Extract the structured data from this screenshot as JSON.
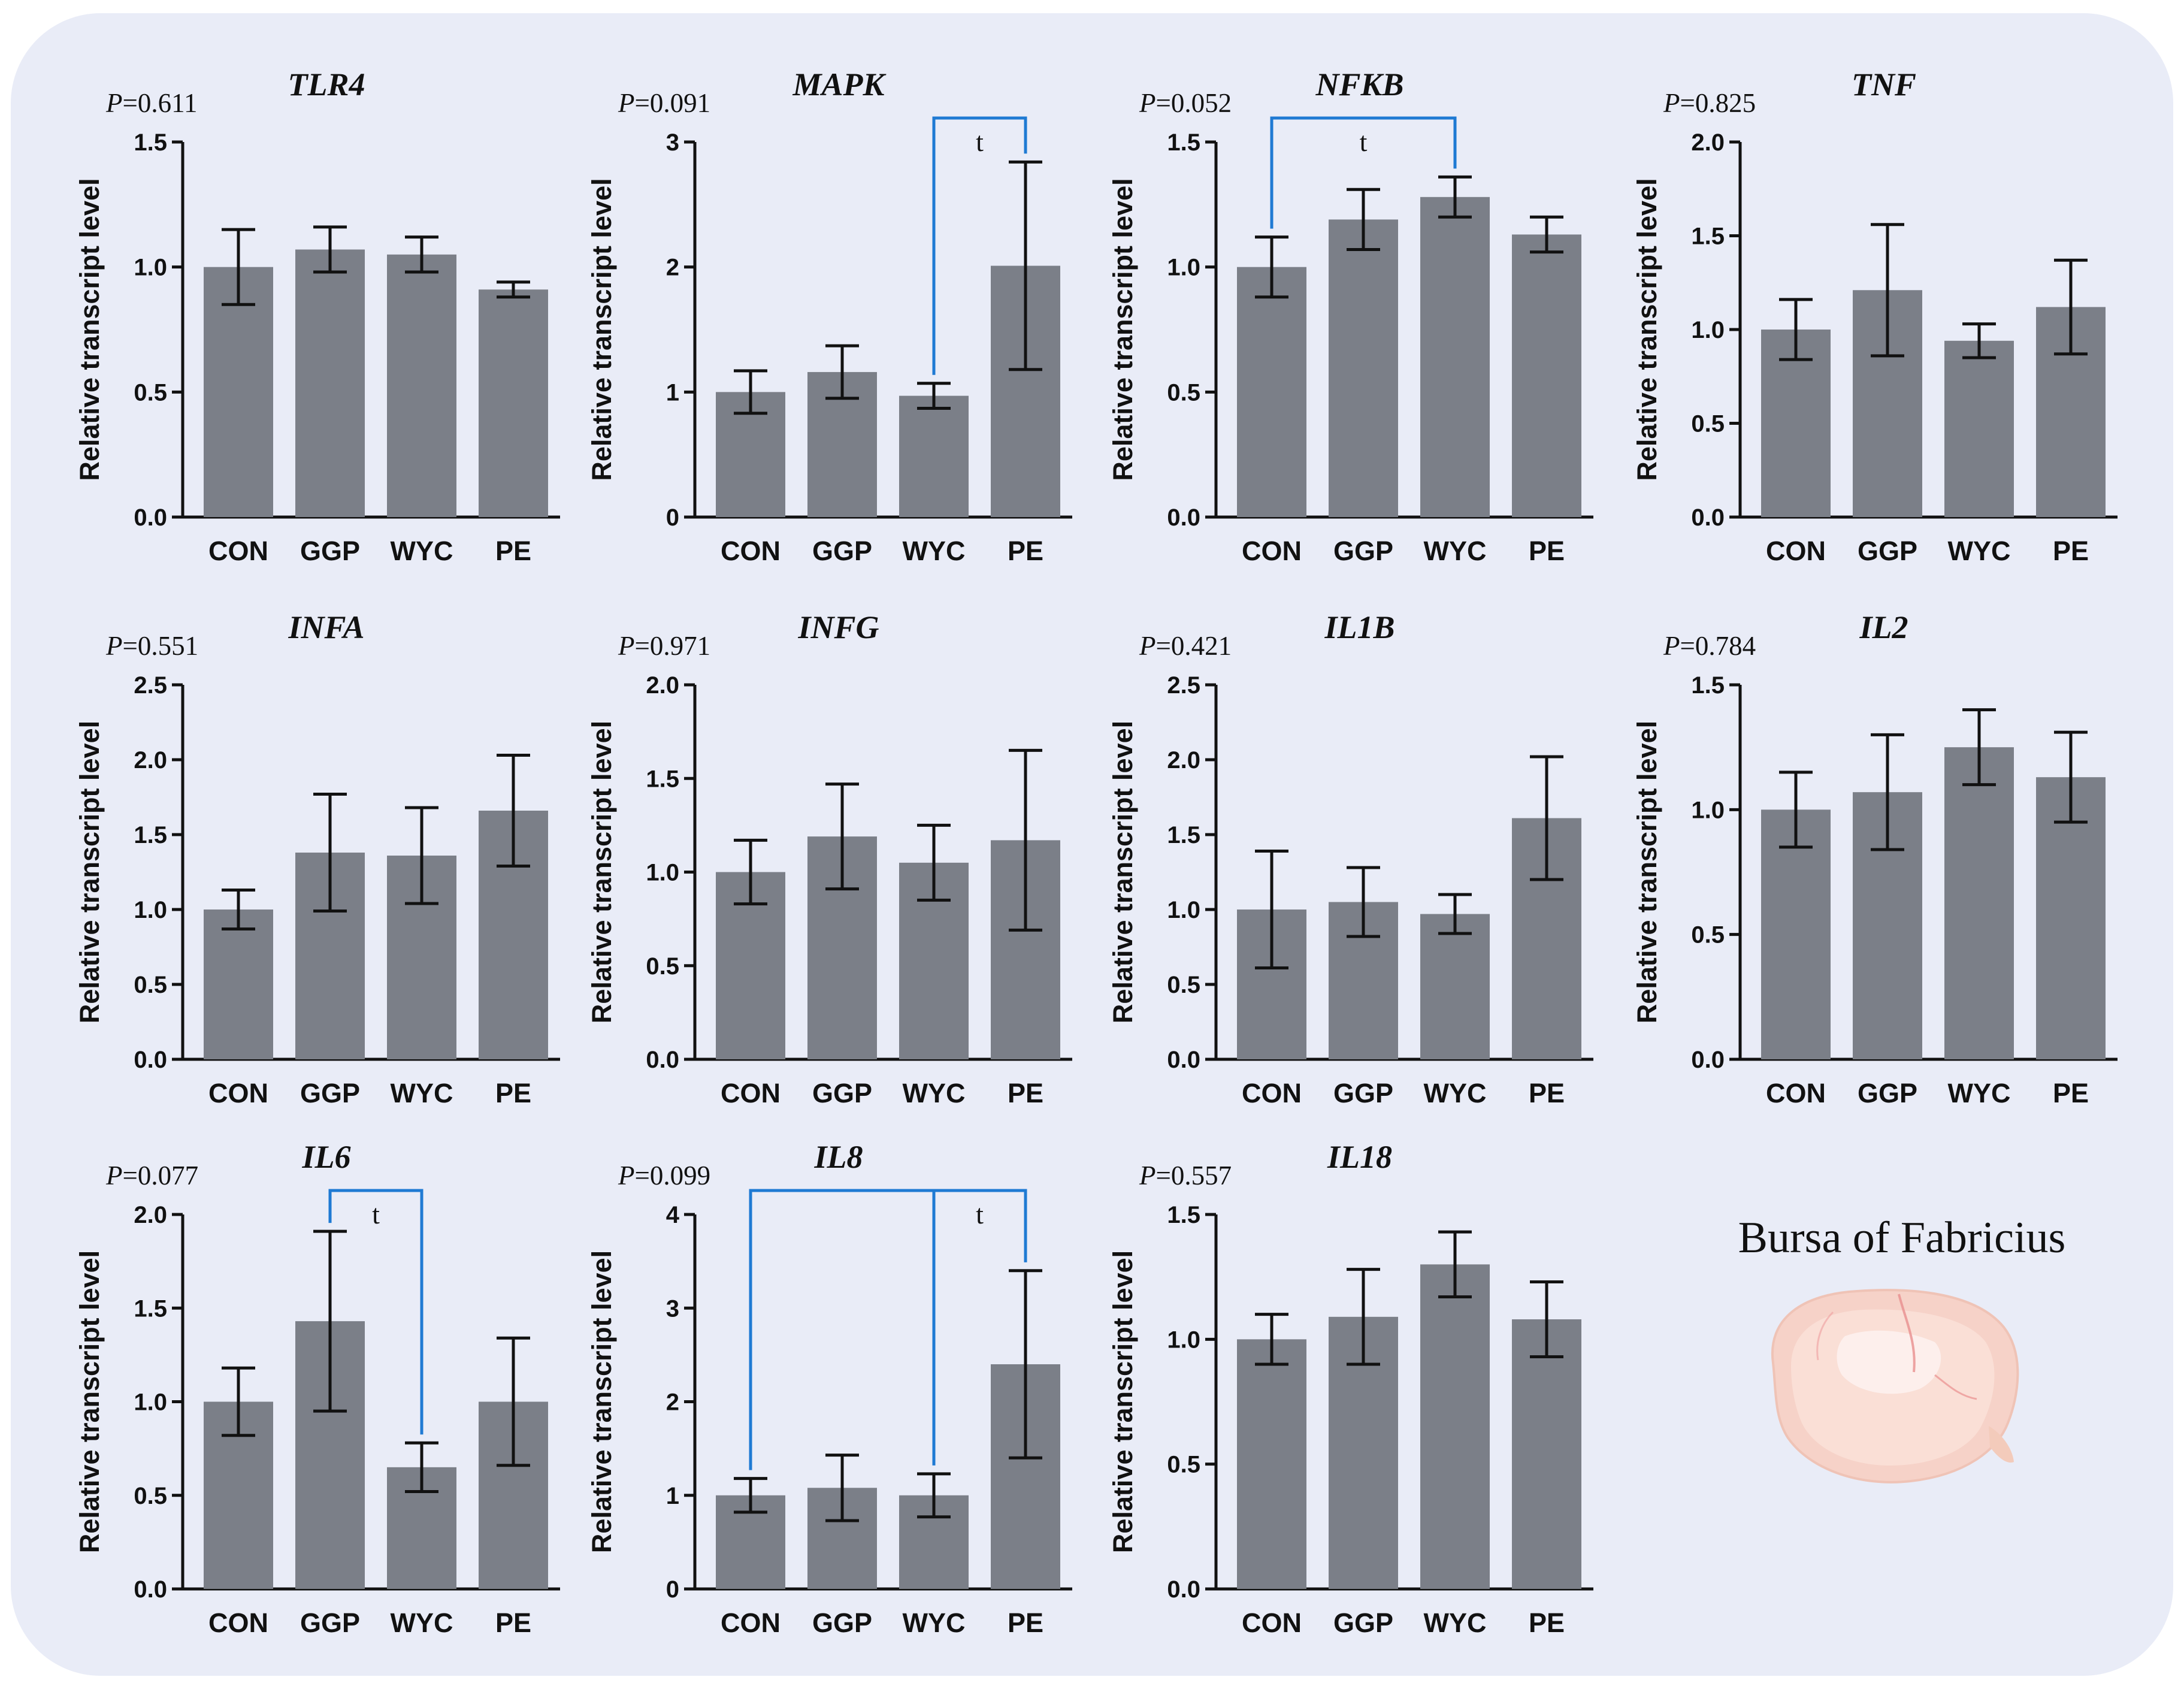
{
  "chart_data": [
    {
      "type": "bar",
      "title": "TLR4",
      "p_value_label": "P=0.611",
      "ylabel": "Relative transcript level",
      "categories": [
        "CON",
        "GGP",
        "WYC",
        "PE"
      ],
      "values": [
        1.0,
        1.07,
        1.05,
        0.91
      ],
      "errors": [
        0.15,
        0.09,
        0.07,
        0.03
      ],
      "ylim": [
        0,
        1.5
      ],
      "yticks": [
        "0.0",
        "0.5",
        "1.0",
        "1.5"
      ],
      "brackets": []
    },
    {
      "type": "bar",
      "title": "MAPK",
      "p_value_label": "P=0.091",
      "ylabel": "Relative transcript level",
      "categories": [
        "CON",
        "GGP",
        "WYC",
        "PE"
      ],
      "values": [
        1.0,
        1.16,
        0.97,
        2.01
      ],
      "errors": [
        0.17,
        0.21,
        0.1,
        0.83
      ],
      "ylim": [
        0,
        3
      ],
      "yticks": [
        "0",
        "1",
        "2",
        "3"
      ],
      "brackets": [
        {
          "from": "WYC",
          "to": "PE",
          "label": "t"
        }
      ]
    },
    {
      "type": "bar",
      "title": "NFKB",
      "p_value_label": "P=0.052",
      "ylabel": "Relative transcript level",
      "categories": [
        "CON",
        "GGP",
        "WYC",
        "PE"
      ],
      "values": [
        1.0,
        1.19,
        1.28,
        1.13
      ],
      "errors": [
        0.12,
        0.12,
        0.08,
        0.07
      ],
      "ylim": [
        0,
        1.5
      ],
      "yticks": [
        "0.0",
        "0.5",
        "1.0",
        "1.5"
      ],
      "brackets": [
        {
          "from": "CON",
          "to": "WYC",
          "label": "t"
        }
      ]
    },
    {
      "type": "bar",
      "title": "TNF",
      "p_value_label": "P=0.825",
      "ylabel": "Relative transcript level",
      "categories": [
        "CON",
        "GGP",
        "WYC",
        "PE"
      ],
      "values": [
        1.0,
        1.21,
        0.94,
        1.12
      ],
      "errors": [
        0.16,
        0.35,
        0.09,
        0.25
      ],
      "ylim": [
        0,
        2.0
      ],
      "yticks": [
        "0.0",
        "0.5",
        "1.0",
        "1.5",
        "2.0"
      ],
      "brackets": []
    },
    {
      "type": "bar",
      "title": "INFA",
      "p_value_label": "P=0.551",
      "ylabel": "Relative transcript level",
      "categories": [
        "CON",
        "GGP",
        "WYC",
        "PE"
      ],
      "values": [
        1.0,
        1.38,
        1.36,
        1.66
      ],
      "errors": [
        0.13,
        0.39,
        0.32,
        0.37
      ],
      "ylim": [
        0,
        2.5
      ],
      "yticks": [
        "0.0",
        "0.5",
        "1.0",
        "1.5",
        "2.0",
        "2.5"
      ],
      "brackets": []
    },
    {
      "type": "bar",
      "title": "INFG",
      "p_value_label": "P=0.971",
      "ylabel": "Relative transcript level",
      "categories": [
        "CON",
        "GGP",
        "WYC",
        "PE"
      ],
      "values": [
        1.0,
        1.19,
        1.05,
        1.17
      ],
      "errors": [
        0.17,
        0.28,
        0.2,
        0.48
      ],
      "ylim": [
        0,
        2.0
      ],
      "yticks": [
        "0.0",
        "0.5",
        "1.0",
        "1.5",
        "2.0"
      ],
      "brackets": []
    },
    {
      "type": "bar",
      "title": "IL1B",
      "p_value_label": "P=0.421",
      "ylabel": "Relative transcript level",
      "categories": [
        "CON",
        "GGP",
        "WYC",
        "PE"
      ],
      "values": [
        1.0,
        1.05,
        0.97,
        1.61
      ],
      "errors": [
        0.39,
        0.23,
        0.13,
        0.41
      ],
      "ylim": [
        0,
        2.5
      ],
      "yticks": [
        "0.0",
        "0.5",
        "1.0",
        "1.5",
        "2.0",
        "2.5"
      ],
      "brackets": []
    },
    {
      "type": "bar",
      "title": "IL2",
      "p_value_label": "P=0.784",
      "ylabel": "Relative transcript level",
      "categories": [
        "CON",
        "GGP",
        "WYC",
        "PE"
      ],
      "values": [
        1.0,
        1.07,
        1.25,
        1.13
      ],
      "errors": [
        0.15,
        0.23,
        0.15,
        0.18
      ],
      "ylim": [
        0,
        1.5
      ],
      "yticks": [
        "0.0",
        "0.5",
        "1.0",
        "1.5"
      ],
      "brackets": []
    },
    {
      "type": "bar",
      "title": "IL6",
      "p_value_label": "P=0.077",
      "ylabel": "Relative transcript level",
      "categories": [
        "CON",
        "GGP",
        "WYC",
        "PE"
      ],
      "values": [
        1.0,
        1.43,
        0.65,
        1.0
      ],
      "errors": [
        0.18,
        0.48,
        0.13,
        0.34
      ],
      "ylim": [
        0,
        2.0
      ],
      "yticks": [
        "0.0",
        "0.5",
        "1.0",
        "1.5",
        "2.0"
      ],
      "brackets": [
        {
          "from": "GGP",
          "to": "WYC",
          "label": "t"
        }
      ]
    },
    {
      "type": "bar",
      "title": "IL8",
      "p_value_label": "P=0.099",
      "ylabel": "Relative transcript level",
      "categories": [
        "CON",
        "GGP",
        "WYC",
        "PE"
      ],
      "values": [
        1.0,
        1.08,
        1.0,
        2.4
      ],
      "errors": [
        0.18,
        0.35,
        0.23,
        1.0
      ],
      "ylim": [
        0,
        4
      ],
      "yticks": [
        "0",
        "1",
        "2",
        "3",
        "4"
      ],
      "brackets": [
        {
          "from": "CON",
          "to": "PE",
          "label": "t"
        },
        {
          "from": "WYC",
          "to": "PE",
          "label": ""
        }
      ]
    },
    {
      "type": "bar",
      "title": "IL18",
      "p_value_label": "P=0.557",
      "ylabel": "Relative transcript level",
      "categories": [
        "CON",
        "GGP",
        "WYC",
        "PE"
      ],
      "values": [
        1.0,
        1.09,
        1.3,
        1.08
      ],
      "errors": [
        0.1,
        0.19,
        0.13,
        0.15
      ],
      "ylim": [
        0,
        1.5
      ],
      "yticks": [
        "0.0",
        "0.5",
        "1.0",
        "1.5"
      ],
      "brackets": []
    }
  ],
  "tissue_label": "Bursa of Fabricius",
  "colors": {
    "panel_background": "#e9ecf7",
    "bar_fill": "#7b7f88",
    "axis": "#111111",
    "bracket": "#1f7ad3"
  }
}
